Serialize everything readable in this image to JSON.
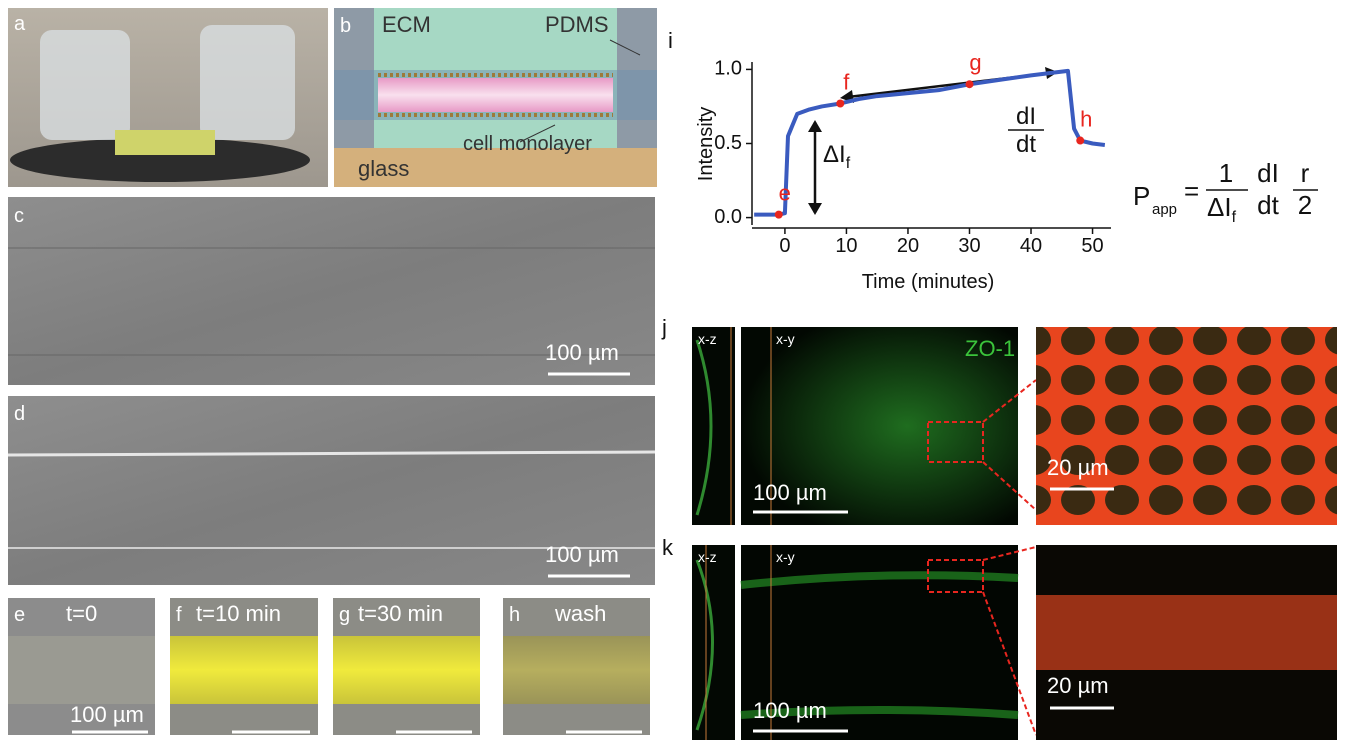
{
  "panels": {
    "a": {
      "label": "a"
    },
    "b": {
      "label": "b",
      "ecm": "ECM",
      "pdms": "PDMS",
      "cells": "cell monolayer",
      "glass": "glass"
    },
    "c": {
      "label": "c",
      "scale": "100 µm"
    },
    "d": {
      "label": "d",
      "scale": "100 µm"
    },
    "e": {
      "label": "e",
      "time": "t=0",
      "scale": "100 µm"
    },
    "f": {
      "label": "f",
      "time": "t=10 min"
    },
    "g": {
      "label": "g",
      "time": "t=30 min"
    },
    "h": {
      "label": "h",
      "time": "wash"
    },
    "j": {
      "label": "j",
      "xz": "x-z",
      "xy": "x-y",
      "stain": "ZO-1",
      "scale": "100 µm",
      "zoom_scale": "20 µm"
    },
    "k": {
      "label": "k",
      "xz": "x-z",
      "xy": "x-y",
      "scale": "100 µm",
      "zoom_scale": "20 µm"
    },
    "formula": {
      "p": "P",
      "p_sub": "app",
      "eq": "=",
      "one": "1",
      "delta": "ΔI",
      "delta_sub": "f",
      "num": "dI",
      "den": "dt",
      "r": "r",
      "two": "2"
    }
  },
  "chart_data": {
    "type": "line",
    "label": "i",
    "ylabel": "Intensity",
    "xlabel": "Time (minutes)",
    "x": [
      -5,
      -1,
      0,
      0.5,
      1,
      2,
      4,
      6,
      9,
      12,
      15,
      20,
      25,
      30,
      35,
      40,
      44,
      46,
      47,
      48,
      50,
      52
    ],
    "values": [
      0.02,
      0.02,
      0.03,
      0.55,
      0.6,
      0.7,
      0.73,
      0.75,
      0.77,
      0.8,
      0.82,
      0.84,
      0.86,
      0.9,
      0.93,
      0.96,
      0.98,
      0.99,
      0.6,
      0.52,
      0.5,
      0.49
    ],
    "color": "#3a5bbf",
    "points": {
      "labels": [
        "e",
        "f",
        "g",
        "h"
      ],
      "x": [
        -1,
        9,
        30,
        48
      ],
      "values": [
        0.02,
        0.77,
        0.9,
        0.52
      ],
      "color": "#e8261f"
    },
    "delta_label": "ΔI",
    "delta_sub": "f",
    "slope_num": "dI",
    "slope_den": "dt",
    "xlim": [
      -6,
      53
    ],
    "xticks": [
      0,
      10,
      20,
      30,
      40,
      50
    ],
    "ylim": [
      -0.05,
      1.05
    ],
    "yticks": [
      {
        "value": 0,
        "label": "0.0"
      },
      0.5,
      {
        "value": 1,
        "label": "1.0"
      }
    ]
  }
}
